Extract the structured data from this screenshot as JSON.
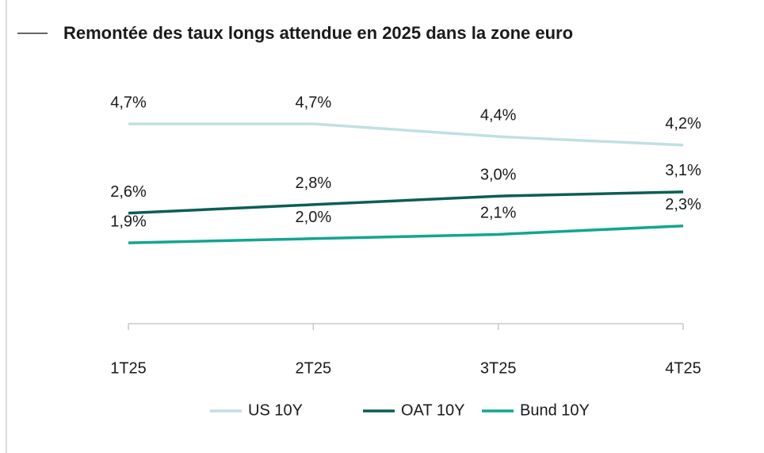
{
  "chart_data": {
    "type": "line",
    "title": "Remontée des taux longs attendue en 2025 dans la zone euro",
    "categories": [
      "1T25",
      "2T25",
      "3T25",
      "4T25"
    ],
    "series": [
      {
        "name": "US 10Y",
        "color": "#bfe0e3",
        "values": [
          4.7,
          4.7,
          4.4,
          4.2
        ],
        "value_labels": [
          "4,7%",
          "4,7%",
          "4,4%",
          "4,2%"
        ]
      },
      {
        "name": "OAT 10Y",
        "color": "#0b5e55",
        "values": [
          2.6,
          2.8,
          3.0,
          3.1
        ],
        "value_labels": [
          "2,6%",
          "2,8%",
          "3,0%",
          "3,1%"
        ]
      },
      {
        "name": "Bund 10Y",
        "color": "#13a591",
        "values": [
          1.9,
          2.0,
          2.1,
          2.3
        ],
        "value_labels": [
          "1,9%",
          "2,0%",
          "2,1%",
          "2,3%"
        ]
      }
    ],
    "ylim": [
      0,
      5
    ],
    "legend": "bottom"
  }
}
